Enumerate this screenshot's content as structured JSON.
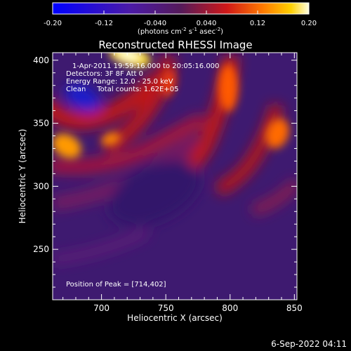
{
  "chart_data": {
    "type": "heatmap",
    "title": "Reconstructed RHESSI Image",
    "xlabel": "Heliocentric X (arcsec)",
    "ylabel": "Heliocentric Y (arcsec)",
    "xlim": [
      662,
      852
    ],
    "ylim": [
      210,
      406
    ],
    "x_ticks": [
      700,
      750,
      800,
      850
    ],
    "y_ticks": [
      250,
      300,
      350,
      400
    ],
    "colorbar": {
      "range": [
        -0.2,
        0.2
      ],
      "tick_values": [
        -0.2,
        -0.12,
        -0.04,
        0.04,
        0.12,
        0.2
      ],
      "tick_labels": [
        "-0.20",
        "-0.12",
        "-0.040",
        "0.040",
        "0.12",
        "0.20"
      ],
      "unit_label": "(photons cm",
      "unit_exp1": "-2",
      "unit_mid": " s",
      "unit_exp2": "-1",
      "unit_mid2": " asec",
      "unit_exp3": "-2",
      "unit_end": ")"
    },
    "annotations": {
      "time_range": "1-Apr-2011 19:59:16.000 to 20:05:16.000",
      "detectors": "Detectors: 3F 8F Att 0",
      "energy_range": "Energy Range: 12.0 - 25.0 keV",
      "clean_counts": "Clean     Total counts: 1.62E+05",
      "peak_position": "Position of Peak = [714,402]"
    },
    "peak": [
      714,
      402
    ],
    "grid": false
  },
  "footer": {
    "timestamp": "6-Sep-2022 04:11"
  }
}
